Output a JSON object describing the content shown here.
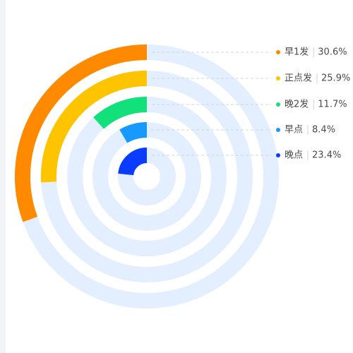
{
  "chart_data": {
    "type": "radial-bar",
    "max": 100,
    "track_color": "#e3efff",
    "series": [
      {
        "name": "早1发",
        "value": 30.6,
        "label": "30.6%",
        "color": "#ff8a00"
      },
      {
        "name": "正点发",
        "value": 25.9,
        "label": "25.9%",
        "color": "#ffc400"
      },
      {
        "name": "晚2发",
        "value": 11.7,
        "label": "11.7%",
        "color": "#12e07a"
      },
      {
        "name": "早点",
        "value": 8.4,
        "label": "8.4%",
        "color": "#1799ff"
      },
      {
        "name": "晚点",
        "value": 23.4,
        "label": "23.4%",
        "color": "#0a3cff"
      }
    ]
  }
}
